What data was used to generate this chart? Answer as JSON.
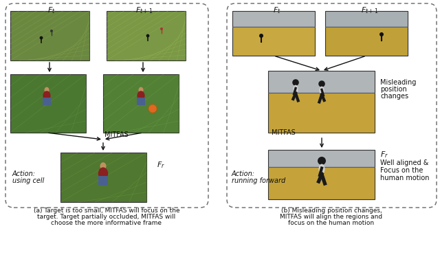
{
  "bg_color": "#ffffff",
  "fig_width": 6.4,
  "fig_height": 3.87,
  "caption_a_line1": "(a) Target is too small, MITFAS will focus on the",
  "caption_a_line2": "target. Target partially occluded, MITFAS will",
  "caption_a_line3": "choose the more informative frame",
  "caption_b_line1": "(b) Misleading position changes,",
  "caption_b_line2": "MITFAS will align the regions and",
  "caption_b_line3": "focus on the human motion",
  "label_Ft": "$F_t$",
  "label_Ft1": "$F_{t+1}$",
  "label_Fr": "$F_r$",
  "label_MITFAS": "MITFAS",
  "label_action_a_1": "Action:",
  "label_action_a_2": "using cell",
  "label_action_b_1": "Action:",
  "label_action_b_2": "running forward",
  "label_misleading_1": "Misleading",
  "label_misleading_2": "position",
  "label_misleading_3": "changes",
  "label_Fr_right": "$F_r$",
  "label_well_1": "Well aligned &",
  "label_well_2": "Focus on the",
  "label_well_3": "human motion",
  "col_field_lt": "#6b8840",
  "col_field_dk": "#5a7535",
  "col_grass_lt": "#8aaa55",
  "col_person_top": "#6a1a1a",
  "col_person_body": "#8a2020",
  "col_person_legs": "#4a6090",
  "col_orange": "#e06820",
  "col_desert_lt": "#c8a845",
  "col_desert_dk": "#a88830",
  "col_sky": "#b8bec0",
  "col_runner_dark": "#1a1a1a",
  "col_runner_shirt": "#d0d0d0",
  "col_border": "#444444",
  "col_dash": "#666666",
  "col_arrow": "#111111",
  "col_text": "#111111",
  "fs_label": 8,
  "fs_action": 7,
  "fs_annot": 7,
  "fs_caption": 6.5
}
